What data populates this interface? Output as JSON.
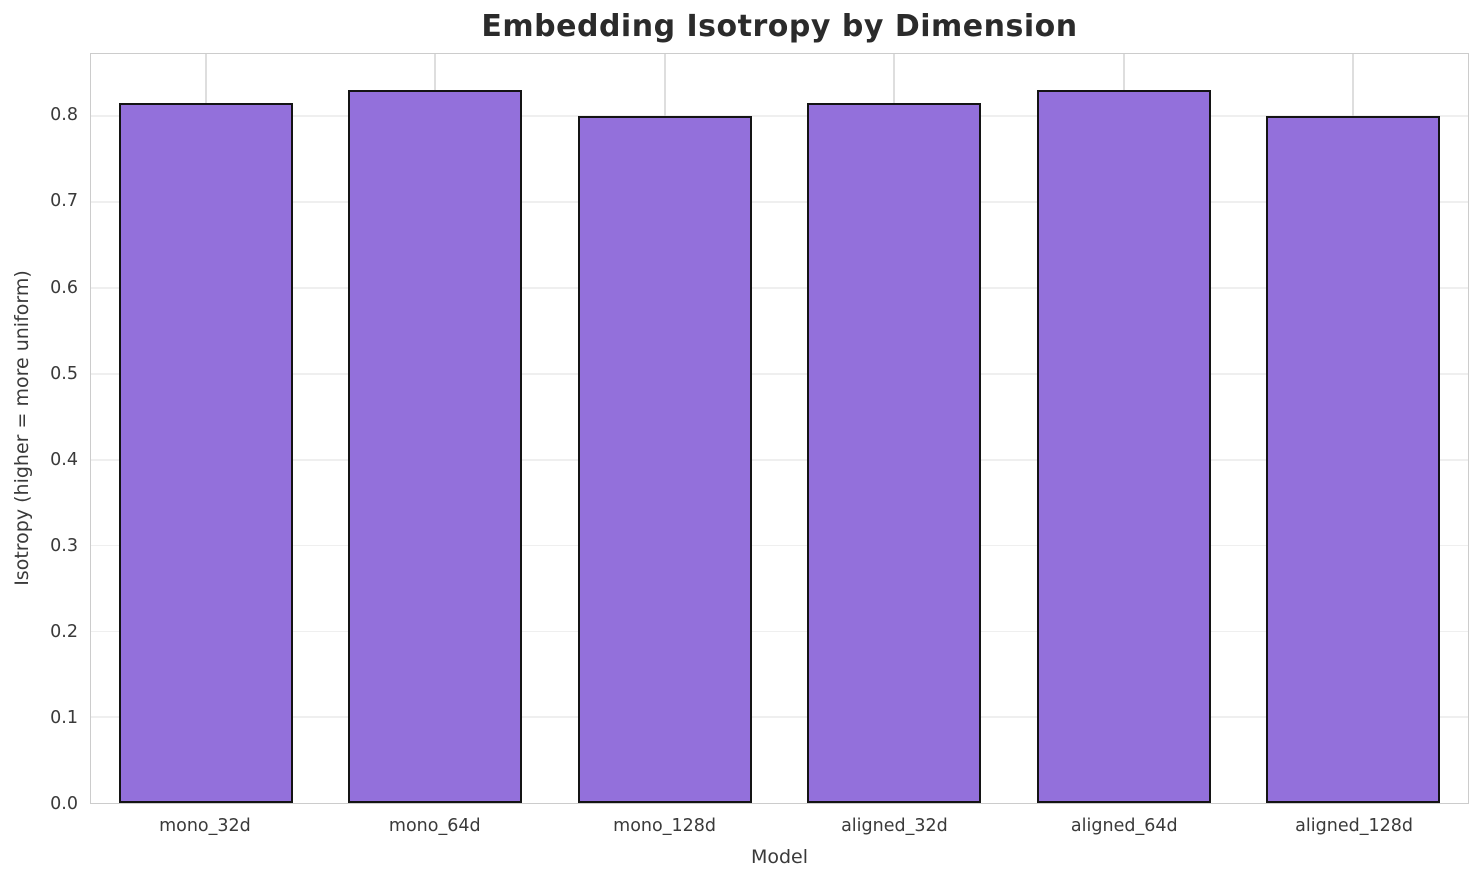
{
  "chart_data": {
    "type": "bar",
    "title": "Embedding Isotropy by Dimension",
    "xlabel": "Model",
    "ylabel": "Isotropy (higher = more uniform)",
    "categories": [
      "mono_32d",
      "mono_64d",
      "mono_128d",
      "aligned_32d",
      "aligned_64d",
      "aligned_128d"
    ],
    "values": [
      0.815,
      0.83,
      0.8,
      0.815,
      0.83,
      0.8
    ],
    "yticks": [
      0.0,
      0.1,
      0.2,
      0.3,
      0.4,
      0.5,
      0.6,
      0.7,
      0.8
    ],
    "ytick_labels": [
      "0.0",
      "0.1",
      "0.2",
      "0.3",
      "0.4",
      "0.5",
      "0.6",
      "0.7",
      "0.8"
    ],
    "ylim": [
      0,
      0.8725
    ],
    "grid": true,
    "legend": "none",
    "bar_color": "#9370db",
    "bar_edge_color": "#141414",
    "bar_width_ratio": 0.757,
    "colors": {
      "title": "#2b2b2b",
      "text": "#3a3a3a",
      "spine": "#cccccc",
      "hgrid": "#efefef",
      "vgrid": "#dedede",
      "background": "#ffffff"
    }
  }
}
